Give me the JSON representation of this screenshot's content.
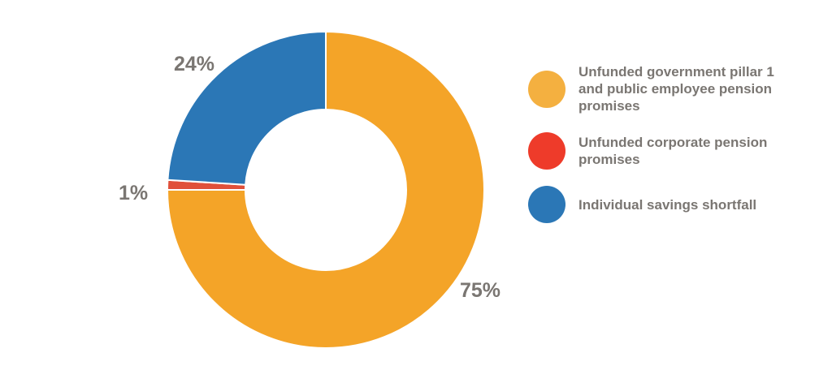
{
  "chart_data": {
    "type": "pie",
    "donut": true,
    "categories": [
      "Unfunded government pillar 1 and public employee pension promises",
      "Unfunded corporate pension promises",
      "Individual savings shortfall"
    ],
    "values": [
      75,
      1,
      24
    ],
    "labels": [
      "75%",
      "1%",
      "24%"
    ],
    "colors": [
      "#f4a428",
      "#e0503a",
      "#2b77b6"
    ],
    "legend_colors": [
      "#f4b040",
      "#ee3b2a",
      "#2b77b6"
    ],
    "legend_position": "right"
  }
}
